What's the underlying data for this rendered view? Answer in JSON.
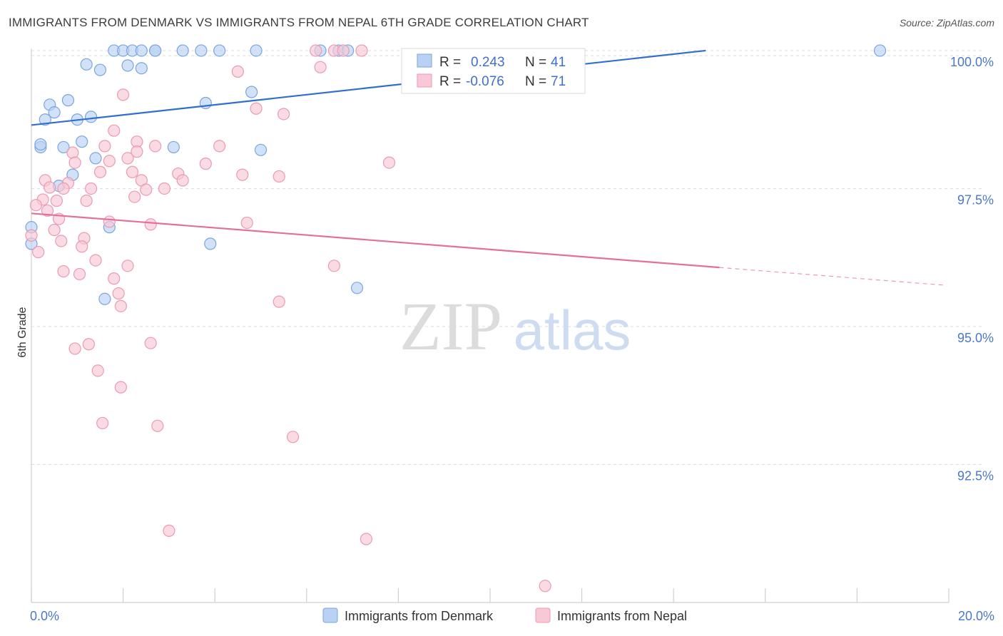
{
  "title": "IMMIGRANTS FROM DENMARK VS IMMIGRANTS FROM NEPAL 6TH GRADE CORRELATION CHART",
  "source": "Source: ZipAtlas.com",
  "watermark": {
    "zip": "ZIP",
    "atlas": "atlas"
  },
  "colors": {
    "denmark_fill": "#b9d1f2",
    "denmark_stroke": "#7aa5e0",
    "denmark_line": "#2f6fcf",
    "nepal_fill": "#f8c8d6",
    "nepal_stroke": "#eb9ab3",
    "nepal_line": "#e46f98",
    "axis_text": "#4a78c8",
    "grid": "#dddddd"
  },
  "stats": {
    "r_label": "R =",
    "n_label": "N =",
    "denmark": {
      "r": "0.243",
      "n": "41"
    },
    "nepal": {
      "r": "-0.076",
      "n": "71"
    }
  },
  "legend": {
    "denmark": "Immigrants from Denmark",
    "nepal": "Immigrants from Nepal"
  },
  "chart_data": {
    "type": "scatter",
    "title": "IMMIGRANTS FROM DENMARK VS IMMIGRANTS FROM NEPAL 6TH GRADE CORRELATION CHART",
    "xlabel": "",
    "ylabel": "6th Grade",
    "xlim": [
      0,
      20
    ],
    "ylim": [
      90.0,
      100.4
    ],
    "x_tick_labels": [
      "0.0%",
      "20.0%"
    ],
    "y_ticks": [
      92.5,
      95.0,
      97.5,
      100.0
    ],
    "y_tick_labels": [
      "92.5%",
      "95.0%",
      "97.5%",
      "100.0%"
    ],
    "grid": true,
    "series": [
      {
        "name": "Immigrants from Denmark",
        "trend": {
          "x": [
            0.0,
            14.7
          ],
          "y": [
            98.65,
            100.0
          ]
        },
        "points": [
          {
            "x": 1.8,
            "y": 100.0
          },
          {
            "x": 2.0,
            "y": 100.0
          },
          {
            "x": 2.2,
            "y": 100.0
          },
          {
            "x": 2.4,
            "y": 100.0
          },
          {
            "x": 2.7,
            "y": 100.0
          },
          {
            "x": 2.7,
            "y": 100.0
          },
          {
            "x": 3.3,
            "y": 100.0
          },
          {
            "x": 3.7,
            "y": 100.0
          },
          {
            "x": 4.1,
            "y": 100.0
          },
          {
            "x": 4.9,
            "y": 100.0
          },
          {
            "x": 6.3,
            "y": 100.0
          },
          {
            "x": 6.7,
            "y": 100.0
          },
          {
            "x": 6.9,
            "y": 100.0
          },
          {
            "x": 18.5,
            "y": 100.0
          },
          {
            "x": 1.2,
            "y": 99.75
          },
          {
            "x": 1.5,
            "y": 99.65
          },
          {
            "x": 2.1,
            "y": 99.73
          },
          {
            "x": 2.4,
            "y": 99.68
          },
          {
            "x": 4.8,
            "y": 99.25
          },
          {
            "x": 0.8,
            "y": 99.1
          },
          {
            "x": 0.4,
            "y": 99.02
          },
          {
            "x": 3.8,
            "y": 99.05
          },
          {
            "x": 0.5,
            "y": 98.88
          },
          {
            "x": 0.3,
            "y": 98.75
          },
          {
            "x": 1.0,
            "y": 98.75
          },
          {
            "x": 1.3,
            "y": 98.8
          },
          {
            "x": 0.2,
            "y": 98.25
          },
          {
            "x": 0.7,
            "y": 98.25
          },
          {
            "x": 1.1,
            "y": 98.35
          },
          {
            "x": 3.1,
            "y": 98.25
          },
          {
            "x": 1.4,
            "y": 98.05
          },
          {
            "x": 0.9,
            "y": 97.75
          },
          {
            "x": 0.6,
            "y": 97.55
          },
          {
            "x": 0.0,
            "y": 96.8
          },
          {
            "x": 1.7,
            "y": 96.8
          },
          {
            "x": 3.9,
            "y": 96.5
          },
          {
            "x": 7.1,
            "y": 95.7
          },
          {
            "x": 1.6,
            "y": 95.5
          },
          {
            "x": 0.0,
            "y": 96.5
          },
          {
            "x": 0.2,
            "y": 98.3
          },
          {
            "x": 5.0,
            "y": 98.2
          }
        ]
      },
      {
        "name": "Immigrants from Nepal",
        "trend": {
          "x": [
            0.0,
            15.0
          ],
          "y": [
            97.05,
            96.07
          ]
        },
        "points": [
          {
            "x": 6.2,
            "y": 100.0
          },
          {
            "x": 6.6,
            "y": 100.0
          },
          {
            "x": 6.8,
            "y": 100.0
          },
          {
            "x": 7.2,
            "y": 100.0
          },
          {
            "x": 6.3,
            "y": 99.7
          },
          {
            "x": 4.5,
            "y": 99.62
          },
          {
            "x": 2.0,
            "y": 99.2
          },
          {
            "x": 4.9,
            "y": 98.95
          },
          {
            "x": 5.5,
            "y": 98.85
          },
          {
            "x": 1.8,
            "y": 98.55
          },
          {
            "x": 2.3,
            "y": 98.35
          },
          {
            "x": 1.6,
            "y": 98.27
          },
          {
            "x": 2.7,
            "y": 98.27
          },
          {
            "x": 4.1,
            "y": 98.27
          },
          {
            "x": 2.3,
            "y": 98.17
          },
          {
            "x": 0.9,
            "y": 98.15
          },
          {
            "x": 2.1,
            "y": 98.05
          },
          {
            "x": 1.7,
            "y": 98.0
          },
          {
            "x": 0.95,
            "y": 97.97
          },
          {
            "x": 3.8,
            "y": 97.95
          },
          {
            "x": 7.8,
            "y": 97.97
          },
          {
            "x": 1.5,
            "y": 97.8
          },
          {
            "x": 2.2,
            "y": 97.8
          },
          {
            "x": 3.2,
            "y": 97.77
          },
          {
            "x": 4.6,
            "y": 97.75
          },
          {
            "x": 5.4,
            "y": 97.72
          },
          {
            "x": 0.3,
            "y": 97.65
          },
          {
            "x": 2.4,
            "y": 97.65
          },
          {
            "x": 3.3,
            "y": 97.65
          },
          {
            "x": 0.8,
            "y": 97.6
          },
          {
            "x": 0.4,
            "y": 97.52
          },
          {
            "x": 0.7,
            "y": 97.5
          },
          {
            "x": 1.3,
            "y": 97.5
          },
          {
            "x": 2.5,
            "y": 97.48
          },
          {
            "x": 2.9,
            "y": 97.5
          },
          {
            "x": 0.25,
            "y": 97.3
          },
          {
            "x": 0.55,
            "y": 97.28
          },
          {
            "x": 1.2,
            "y": 97.28
          },
          {
            "x": 0.1,
            "y": 97.2
          },
          {
            "x": 0.35,
            "y": 97.1
          },
          {
            "x": 0.6,
            "y": 96.95
          },
          {
            "x": 1.7,
            "y": 96.9
          },
          {
            "x": 2.6,
            "y": 96.85
          },
          {
            "x": 4.7,
            "y": 96.88
          },
          {
            "x": 0.5,
            "y": 96.75
          },
          {
            "x": 1.15,
            "y": 96.6
          },
          {
            "x": 0.65,
            "y": 96.55
          },
          {
            "x": 1.1,
            "y": 96.45
          },
          {
            "x": 0.15,
            "y": 96.35
          },
          {
            "x": 1.4,
            "y": 96.2
          },
          {
            "x": 2.1,
            "y": 96.1
          },
          {
            "x": 6.6,
            "y": 96.1
          },
          {
            "x": 0.7,
            "y": 96.0
          },
          {
            "x": 1.05,
            "y": 95.95
          },
          {
            "x": 1.8,
            "y": 95.87
          },
          {
            "x": 1.9,
            "y": 95.6
          },
          {
            "x": 1.95,
            "y": 95.37
          },
          {
            "x": 5.4,
            "y": 95.45
          },
          {
            "x": 2.6,
            "y": 94.7
          },
          {
            "x": 1.25,
            "y": 94.68
          },
          {
            "x": 0.95,
            "y": 94.6
          },
          {
            "x": 1.45,
            "y": 94.2
          },
          {
            "x": 1.95,
            "y": 93.9
          },
          {
            "x": 1.55,
            "y": 93.25
          },
          {
            "x": 2.75,
            "y": 93.2
          },
          {
            "x": 5.7,
            "y": 93.0
          },
          {
            "x": 3.0,
            "y": 91.3
          },
          {
            "x": 7.3,
            "y": 91.15
          },
          {
            "x": 11.2,
            "y": 90.3
          },
          {
            "x": 0.0,
            "y": 96.65
          },
          {
            "x": 2.25,
            "y": 97.35
          }
        ]
      }
    ]
  }
}
